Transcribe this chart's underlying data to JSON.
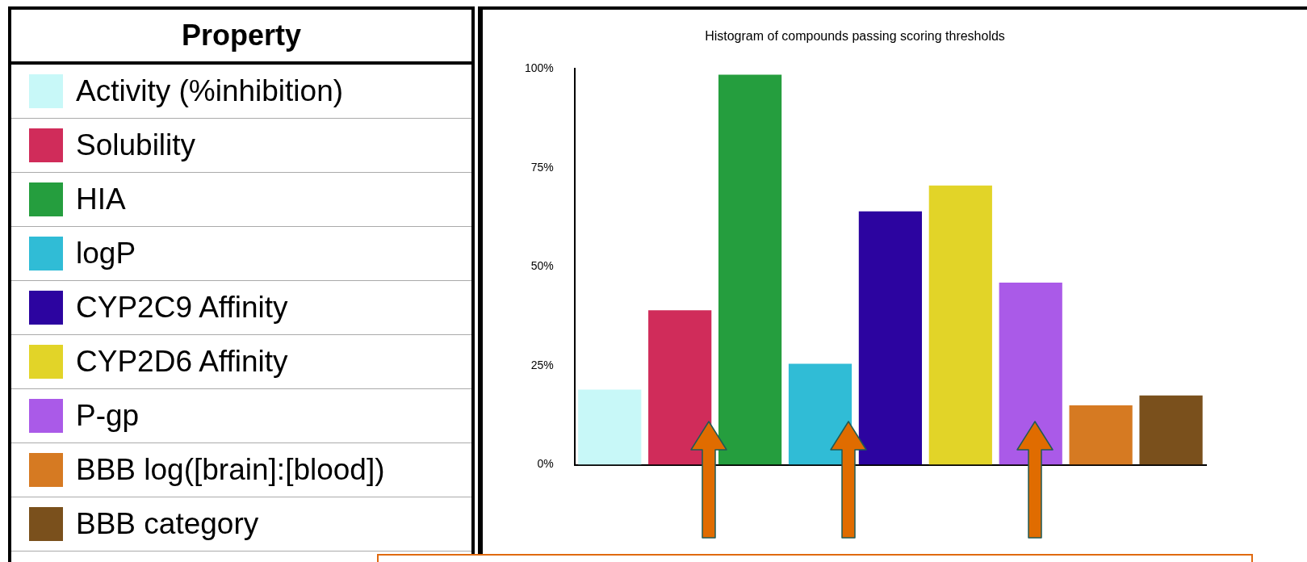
{
  "chart_data": {
    "type": "bar",
    "title": "Histogram of compounds passing scoring thresholds",
    "legend_title": "Property",
    "categories": [
      null
    ],
    "series": [
      {
        "name": "Activity (%inhibition)",
        "color": "#c8f8f8",
        "values": [
          19
        ]
      },
      {
        "name": "Solubility",
        "color": "#d02c5a",
        "values": [
          39
        ]
      },
      {
        "name": "HIA",
        "color": "#259e3e",
        "values": [
          98.5
        ]
      },
      {
        "name": "logP",
        "color": "#30bcd6",
        "values": [
          25.5
        ]
      },
      {
        "name": "CYP2C9 Affinity",
        "color": "#2c04a0",
        "values": [
          64
        ]
      },
      {
        "name": "CYP2D6 Affinity",
        "color": "#e2d428",
        "values": [
          70.5
        ]
      },
      {
        "name": "P-gp",
        "color": "#aa5ae8",
        "values": [
          46
        ]
      },
      {
        "name": "BBB log([brain]:[blood])",
        "color": "#d67a22",
        "values": [
          15
        ]
      },
      {
        "name": "BBB category",
        "color": "#7a501c",
        "values": [
          17.5
        ]
      }
    ],
    "ylim": [
      0,
      100
    ],
    "yticks": [
      {
        "value": 0,
        "label": "0%"
      },
      {
        "value": 25,
        "label": "25%"
      },
      {
        "value": 50,
        "label": "50%"
      },
      {
        "value": 75,
        "label": "75%"
      },
      {
        "value": 100,
        "label": "100%"
      }
    ],
    "grid": false,
    "legend": "left",
    "tick_labels": "y"
  }
}
